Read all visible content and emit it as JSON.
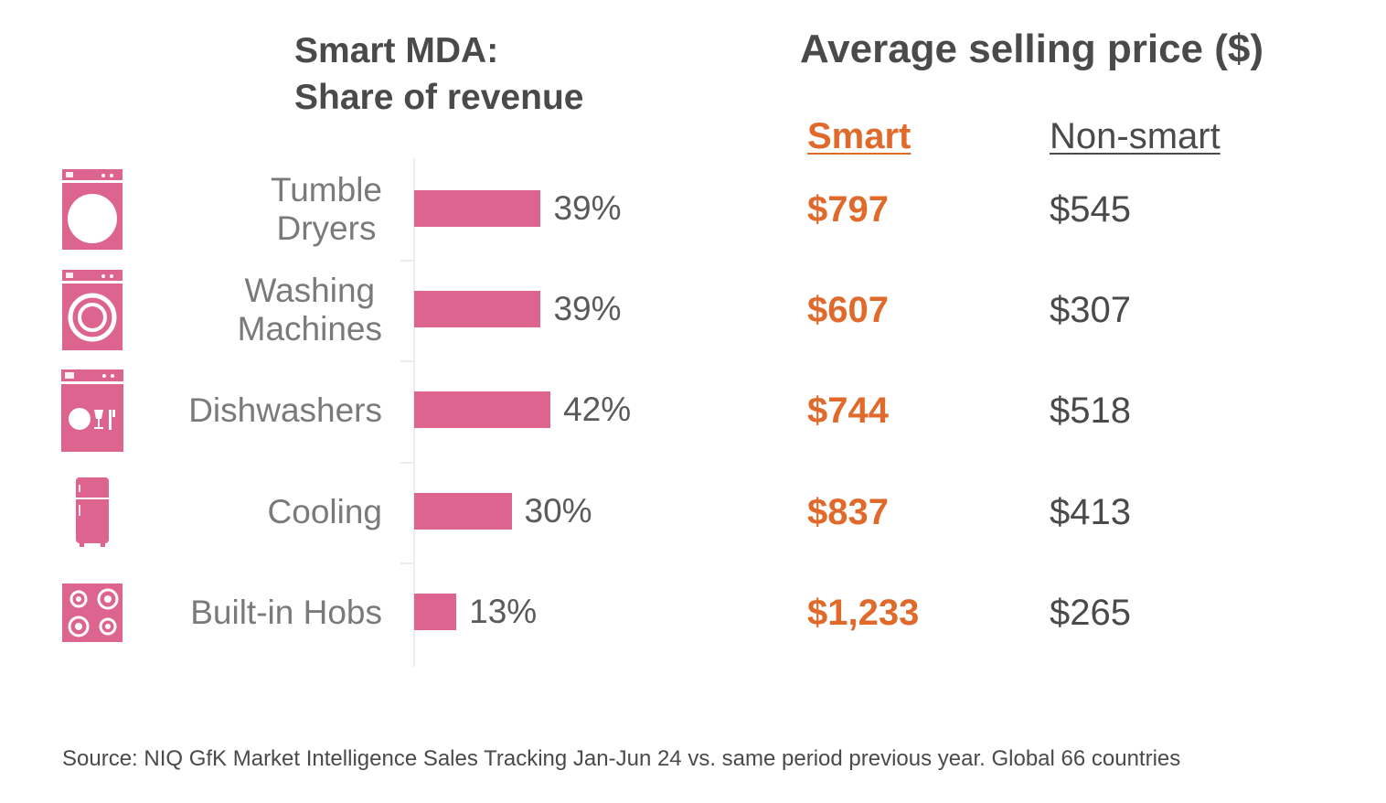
{
  "chart_data": {
    "type": "bar",
    "orientation": "horizontal",
    "title": "Smart MDA: Share of revenue",
    "title_lines": [
      "Smart MDA:",
      "Share of revenue"
    ],
    "categories": [
      {
        "label": "Tumble Dryers",
        "label_lines": [
          "Tumble",
          "Dryers"
        ],
        "icon": "tumble-dryer-icon"
      },
      {
        "label": "Washing Machines",
        "label_lines": [
          "Washing",
          "Machines"
        ],
        "icon": "washing-machine-icon"
      },
      {
        "label": "Dishwashers",
        "label_lines": [
          "Dishwashers"
        ],
        "icon": "dishwasher-icon"
      },
      {
        "label": "Cooling",
        "label_lines": [
          "Cooling"
        ],
        "icon": "fridge-icon"
      },
      {
        "label": "Built-in Hobs",
        "label_lines": [
          "Built-in Hobs"
        ],
        "icon": "hob-icon"
      }
    ],
    "values": [
      39,
      39,
      42,
      30,
      13
    ],
    "value_labels": [
      "39%",
      "39%",
      "42%",
      "30%",
      "13%"
    ],
    "xlim": [
      0,
      100
    ],
    "unit": "%",
    "grid": false,
    "bar_color": "#de6490",
    "icon_color": "#de6490"
  },
  "price_table": {
    "title": "Average selling price ($)",
    "columns": [
      {
        "label": "Smart",
        "color": "#e06a2c"
      },
      {
        "label": "Non-smart",
        "color": "#4a4a4a"
      }
    ],
    "smart": [
      "$797",
      "$607",
      "$744",
      "$837",
      "$1,233"
    ],
    "non_smart": [
      "$545",
      "$307",
      "$518",
      "$413",
      "$265"
    ]
  },
  "source": "Source: NIQ GfK Market Intelligence Sales Tracking Jan-Jun 24 vs. same period previous year. Global 66 countries"
}
